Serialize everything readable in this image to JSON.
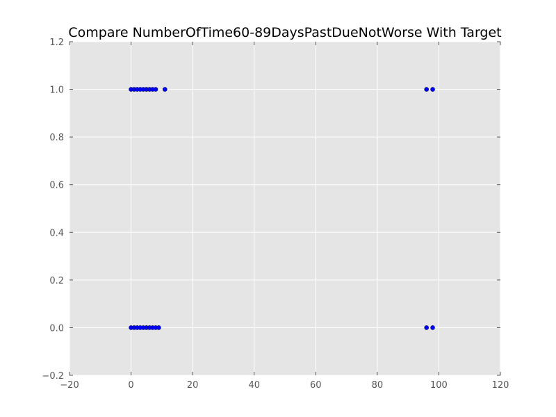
{
  "chart_data": {
    "type": "scatter",
    "title": "Compare NumberOfTime60-89DaysPastDueNotWorse With Target",
    "xlabel": "",
    "ylabel": "",
    "xlim": [
      -20,
      120
    ],
    "ylim": [
      -0.2,
      1.2
    ],
    "xticks": [
      -20,
      0,
      20,
      40,
      60,
      80,
      100,
      120
    ],
    "yticks": [
      -0.2,
      0.0,
      0.2,
      0.4,
      0.6,
      0.8,
      1.0,
      1.2
    ],
    "xtick_labels": [
      "−20",
      "0",
      "20",
      "40",
      "60",
      "80",
      "100",
      "120"
    ],
    "ytick_labels": [
      "−0.2",
      "0.0",
      "0.2",
      "0.4",
      "0.6",
      "0.8",
      "1.0",
      "1.2"
    ],
    "grid": true,
    "colors": {
      "background": "#e5e5e5",
      "grid": "#ffffff",
      "marker": "#0000ff",
      "marker_edge": "#000066"
    },
    "series": [
      {
        "x": [
          0,
          1,
          2,
          3,
          4,
          5,
          6,
          7,
          8,
          11,
          96,
          98
        ],
        "y": [
          1,
          1,
          1,
          1,
          1,
          1,
          1,
          1,
          1,
          1,
          1,
          1
        ]
      },
      {
        "x": [
          0,
          1,
          2,
          3,
          4,
          5,
          6,
          7,
          8,
          9,
          96,
          98
        ],
        "y": [
          0,
          0,
          0,
          0,
          0,
          0,
          0,
          0,
          0,
          0,
          0,
          0
        ]
      }
    ]
  }
}
